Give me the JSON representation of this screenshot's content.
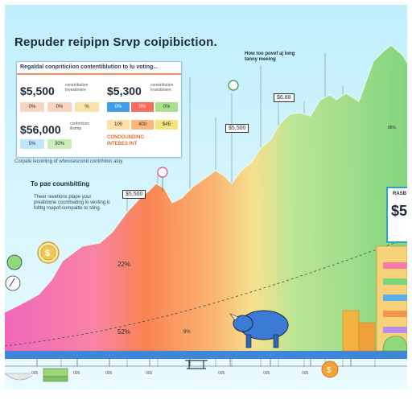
{
  "header": {
    "title": "Repuder reipipn Srvp coipibiction."
  },
  "summary_card": {
    "title": "Regaldal conpriticiion contentiblution to lu voting...",
    "left_amount_1": "$5,500",
    "left_amount_2": "$56,000",
    "right_amount": "$5,300",
    "small_lines_a": "constribution\nInvestimere",
    "small_lines_b": "constribution\nInvestimere",
    "small_lines_c": "conbriction\nilistmp",
    "pills_row1": [
      "0%",
      "0%",
      "%"
    ],
    "pills_row2": [
      "0%",
      "0%",
      "0%"
    ],
    "pills_row3": [
      "5%",
      "30%"
    ],
    "pills_row4": [
      "100",
      "400",
      "$45"
    ],
    "compounding_label": "CONDOUNDING\nINTEBES INT",
    "caption": "Corpate leconting of whoosescond contrihiton aloy."
  },
  "note": {
    "title": "To pae coumbitting",
    "body": "Theer revetions plape your preablome cocmbiating lo vesting ic follttg roepof-compaitle to sting."
  },
  "callout": {
    "text": "How too povef aj long tanny meeing"
  },
  "tags": {
    "t1": "$5,500",
    "t2": "$5,500",
    "t3": "$6.88"
  },
  "percent_labels": {
    "p1": "22%",
    "p2": "52%",
    "p3": "9%",
    "p4": "88%"
  },
  "tick_labels": [
    "005",
    "005",
    "005",
    "005",
    "005",
    "005",
    "005",
    "005",
    "005"
  ],
  "side_card": {
    "label": "RASB",
    "amount": "$5"
  },
  "colors": {
    "sky": "#c7f0fc",
    "pink": "#f46fb5",
    "orange": "#fb8a4e",
    "yellow": "#f7c85a",
    "green": "#8fd97a",
    "blue_mascot": "#3b7bd6"
  }
}
